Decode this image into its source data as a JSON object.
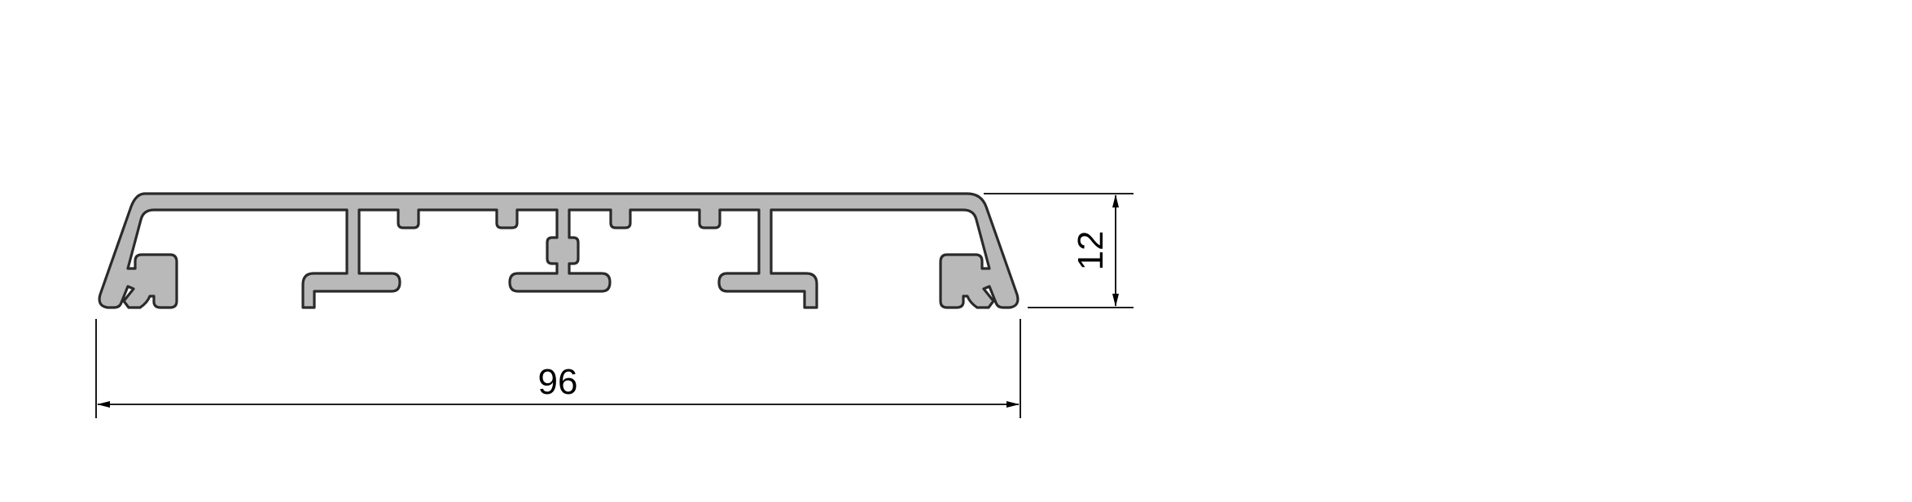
{
  "drawing": {
    "dimensions": {
      "width_label": "96",
      "height_label": "12"
    },
    "colors": {
      "profile_fill": "#b9b9b9",
      "profile_stroke": "#2a2a2a",
      "dimension_lines": "#000000",
      "background": "#ffffff"
    }
  }
}
